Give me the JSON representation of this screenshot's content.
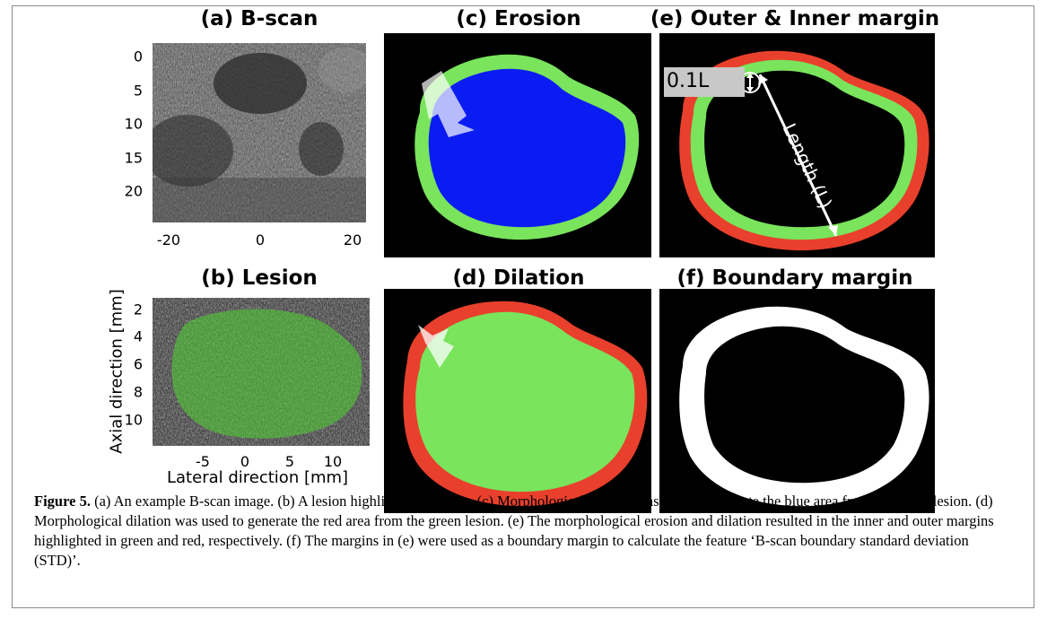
{
  "panels": {
    "a": {
      "title": "(a) B-scan",
      "y_ticks": [
        "0",
        "5",
        "10",
        "15",
        "20"
      ],
      "x_ticks": [
        "-20",
        "0",
        "20"
      ]
    },
    "b": {
      "title": "(b) Lesion",
      "y_ticks": [
        "2",
        "4",
        "6",
        "8",
        "10"
      ],
      "x_ticks": [
        "-5",
        "0",
        "5",
        "10"
      ],
      "ylabel": "Axial direction [mm]",
      "xlabel": "Lateral direction [mm]"
    },
    "c": {
      "title": "(c) Erosion"
    },
    "d": {
      "title": "(d) Dilation"
    },
    "e": {
      "title": "(e) Outer & Inner margin",
      "small_label": "0.1L",
      "length_label": "Length (L)"
    },
    "f": {
      "title": "(f) Boundary margin"
    }
  },
  "colors": {
    "green": "#79e45c",
    "blue": "#0b1cf2",
    "red": "#e8402c",
    "white": "#ffffff",
    "black": "#000000"
  },
  "caption": {
    "label": "Figure 5.",
    "text": " (a) An example B-scan image. (b) A lesion highlighted in green. (c) Morphological erosion was used to generate the blue area from the green lesion. (d) Morphological dilation was used to generate the red area from the green lesion. (e) The morphological erosion and dilation resulted in the inner and outer margins highlighted in green and red, respectively. (f) The margins in (e) were used as a boundary margin to calculate the feature ‘B-scan boundary standard deviation (STD)’."
  }
}
